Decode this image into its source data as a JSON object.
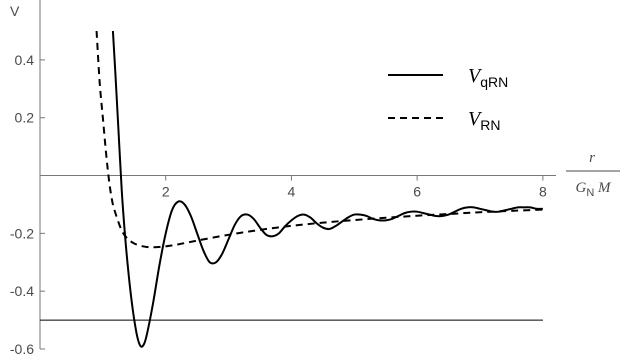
{
  "chart_data": {
    "type": "line",
    "title": "",
    "ylabel": "V",
    "xlabel": {
      "numerator": "r",
      "denominator_main": "G",
      "denominator_sub": "N",
      "denominator_tail": " M"
    },
    "xlim": [
      0,
      8.05
    ],
    "ylim": [
      -0.6,
      0.5
    ],
    "xticks": [
      2,
      4,
      6,
      8
    ],
    "yticks": [
      0.4,
      0.2,
      -0.2,
      -0.4,
      -0.6
    ],
    "ytick_labels": [
      "0.4",
      "0.2",
      "-0.2",
      "-0.4",
      "-0.6"
    ],
    "grid": false,
    "legend_position": "top-right",
    "reference_line": {
      "y": -0.5
    },
    "series": [
      {
        "name": "V_qRN",
        "legend_main": "V",
        "legend_sub": "qRN",
        "style": "solid",
        "color": "#000000",
        "x": [
          1.16,
          1.2,
          1.25,
          1.3,
          1.35,
          1.4,
          1.45,
          1.5,
          1.55,
          1.6,
          1.65,
          1.7,
          1.8,
          1.9,
          2.0,
          2.1,
          2.2,
          2.3,
          2.4,
          2.5,
          2.6,
          2.7,
          2.8,
          2.9,
          3.0,
          3.1,
          3.2,
          3.3,
          3.4,
          3.5,
          3.6,
          3.7,
          3.8,
          3.9,
          4.0,
          4.1,
          4.2,
          4.3,
          4.4,
          4.5,
          4.6,
          4.7,
          4.8,
          4.9,
          5.0,
          5.1,
          5.2,
          5.3,
          5.4,
          5.5,
          5.6,
          5.7,
          5.8,
          5.9,
          6.0,
          6.1,
          6.2,
          6.3,
          6.4,
          6.5,
          6.6,
          6.7,
          6.8,
          6.9,
          7.0,
          7.1,
          7.2,
          7.3,
          7.4,
          7.5,
          7.6,
          7.7,
          7.8,
          7.9,
          8.0
        ],
        "y": [
          0.5,
          0.35,
          0.15,
          -0.05,
          -0.2,
          -0.32,
          -0.42,
          -0.5,
          -0.56,
          -0.59,
          -0.585,
          -0.55,
          -0.44,
          -0.31,
          -0.2,
          -0.12,
          -0.09,
          -0.1,
          -0.14,
          -0.2,
          -0.26,
          -0.3,
          -0.3,
          -0.27,
          -0.22,
          -0.17,
          -0.14,
          -0.135,
          -0.15,
          -0.18,
          -0.205,
          -0.21,
          -0.2,
          -0.175,
          -0.155,
          -0.14,
          -0.135,
          -0.145,
          -0.165,
          -0.18,
          -0.185,
          -0.175,
          -0.16,
          -0.145,
          -0.135,
          -0.135,
          -0.14,
          -0.15,
          -0.155,
          -0.155,
          -0.15,
          -0.14,
          -0.13,
          -0.125,
          -0.125,
          -0.13,
          -0.135,
          -0.14,
          -0.14,
          -0.135,
          -0.125,
          -0.115,
          -0.11,
          -0.11,
          -0.115,
          -0.12,
          -0.125,
          -0.125,
          -0.12,
          -0.115,
          -0.11,
          -0.11,
          -0.11,
          -0.115,
          -0.115
        ]
      },
      {
        "name": "V_RN",
        "legend_main": "V",
        "legend_sub": "RN",
        "style": "dashed",
        "color": "#000000",
        "x": [
          0.9,
          0.95,
          1.0,
          1.05,
          1.1,
          1.15,
          1.2,
          1.3,
          1.4,
          1.5,
          1.6,
          1.7,
          1.8,
          2.0,
          2.2,
          2.5,
          3.0,
          3.5,
          4.0,
          4.5,
          5.0,
          5.5,
          6.0,
          6.5,
          7.0,
          7.5,
          8.0
        ],
        "y": [
          0.5,
          0.32,
          0.2,
          0.08,
          -0.02,
          -0.09,
          -0.13,
          -0.19,
          -0.22,
          -0.235,
          -0.243,
          -0.247,
          -0.248,
          -0.245,
          -0.238,
          -0.225,
          -0.205,
          -0.188,
          -0.174,
          -0.163,
          -0.154,
          -0.146,
          -0.139,
          -0.133,
          -0.127,
          -0.122,
          -0.118
        ]
      }
    ]
  }
}
